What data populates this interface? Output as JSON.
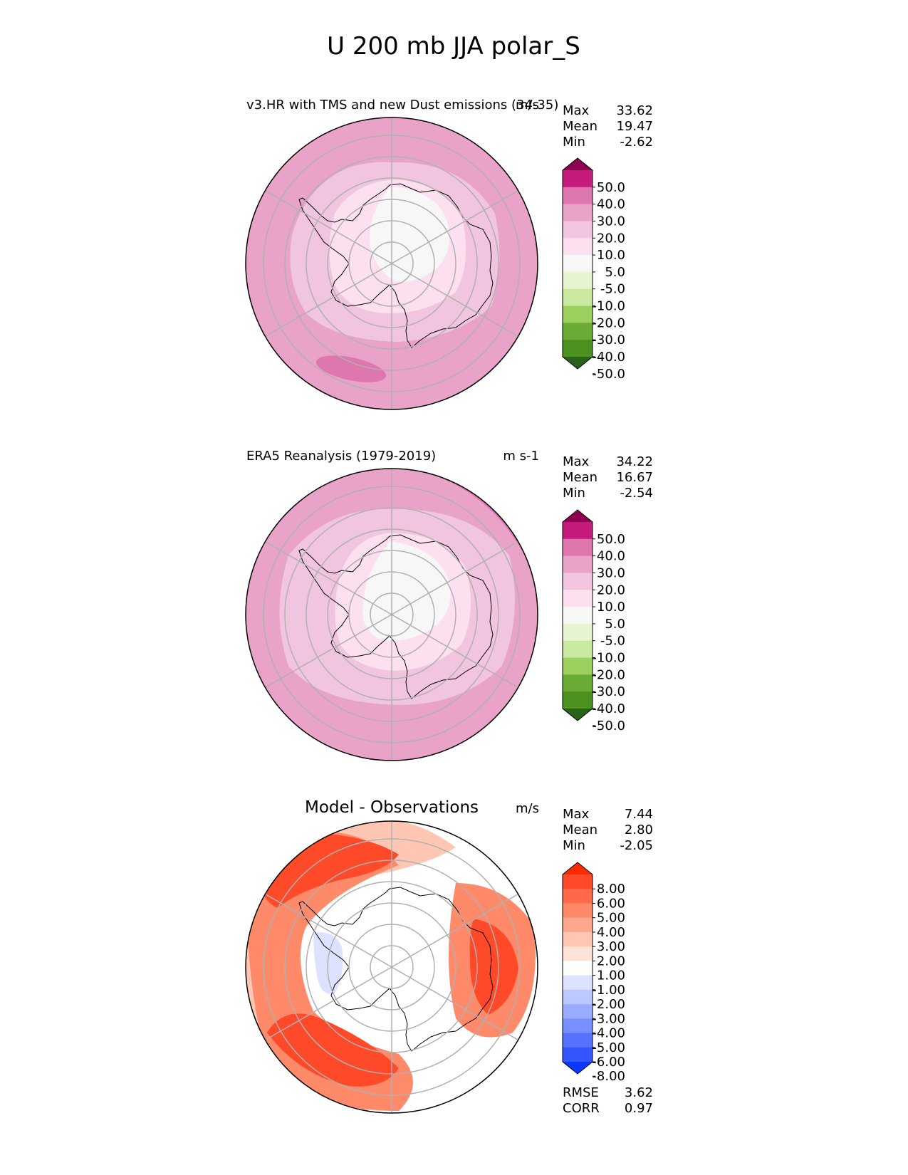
{
  "figure_title": "U 200 mb JJA polar_S",
  "stat_labels": {
    "max": "Max",
    "mean": "Mean",
    "min": "Min",
    "rmse": "RMSE",
    "corr": "CORR"
  },
  "colors": {
    "coastline": "#000000",
    "gridlines": "#b0b0b0"
  },
  "chart_data": [
    {
      "type": "heatmap",
      "projection": "south-polar-stereographic",
      "title": "v3.HR with TMS and new Dust emissions (34-35)",
      "units": "m/s",
      "stats": {
        "max": "33.62",
        "mean": "19.47",
        "min": "-2.62"
      },
      "colorbar": {
        "levels": [
          "50.0",
          "40.0",
          "30.0",
          "20.0",
          "10.0",
          "5.0",
          "-5.0",
          "-10.0",
          "-20.0",
          "-30.0",
          "-40.0",
          "-50.0"
        ],
        "colors": [
          "#8e0152",
          "#c51b7d",
          "#de77ae",
          "#e9a3c9",
          "#f1c5df",
          "#fde0ef",
          "#f7f7f7",
          "#e6f5d0",
          "#c9e8a0",
          "#9bcf5e",
          "#6aab35",
          "#4d9221",
          "#276419"
        ]
      },
      "field_regions": [
        {
          "value_range": "20 to 30",
          "region": "outer ring (outside 40S)"
        },
        {
          "value_range": "30 to 40",
          "region": "northern edge sectors and one jet core near 45S"
        },
        {
          "value_range": "10 to 20",
          "region": "ring near Antarctic coast"
        },
        {
          "value_range": "5 to 10",
          "region": "inner continent band"
        },
        {
          "value_range": "-5 to 5",
          "region": "polar cap over East Antarctica"
        }
      ]
    },
    {
      "type": "heatmap",
      "projection": "south-polar-stereographic",
      "title": "ERA5 Reanalysis (1979-2019)",
      "units": "m s-1",
      "stats": {
        "max": "34.22",
        "mean": "16.67",
        "min": "-2.54"
      },
      "colorbar": {
        "levels": [
          "50.0",
          "40.0",
          "30.0",
          "20.0",
          "10.0",
          "5.0",
          "-5.0",
          "-10.0",
          "-20.0",
          "-30.0",
          "-40.0",
          "-50.0"
        ],
        "colors": [
          "#8e0152",
          "#c51b7d",
          "#de77ae",
          "#e9a3c9",
          "#f1c5df",
          "#fde0ef",
          "#f7f7f7",
          "#e6f5d0",
          "#c9e8a0",
          "#9bcf5e",
          "#6aab35",
          "#4d9221",
          "#276419"
        ]
      },
      "field_regions": [
        {
          "value_range": "20 to 30",
          "region": "outer ring (outside 45S)"
        },
        {
          "value_range": "30 to 40",
          "region": "north-east edge sector"
        },
        {
          "value_range": "10 to 20",
          "region": "ring over Southern Ocean coast"
        },
        {
          "value_range": "5 to 10",
          "region": "continent margin"
        },
        {
          "value_range": "-5 to 5",
          "region": "polar cap"
        }
      ]
    },
    {
      "type": "heatmap",
      "projection": "south-polar-stereographic",
      "title": "Model - Observations",
      "units": "m/s",
      "stats": {
        "max": "7.44",
        "mean": "2.80",
        "min": "-2.05"
      },
      "metrics": {
        "rmse": "3.62",
        "corr": "0.97"
      },
      "colorbar": {
        "levels": [
          "8.00",
          "6.00",
          "5.00",
          "4.00",
          "3.00",
          "2.00",
          "1.00",
          "-1.00",
          "-2.00",
          "-3.00",
          "-4.00",
          "-5.00",
          "-6.00",
          "-8.00"
        ],
        "colors": [
          "#ff2a00",
          "#ff4a2a",
          "#ff6a4a",
          "#ff8a6a",
          "#ffa88e",
          "#ffc6b4",
          "#ffe2d8",
          "#ffffff",
          "#dde3ff",
          "#bcc8ff",
          "#9aacff",
          "#7890ff",
          "#5672ff",
          "#3455ff",
          "#0a37ff"
        ]
      },
      "field_regions": [
        {
          "value_range": "5 to 8",
          "region": "north-west sector near 40S"
        },
        {
          "value_range": "5 to 8",
          "region": "south-west sector near 50S"
        },
        {
          "value_range": "5 to 8",
          "region": "east sector near 60S"
        },
        {
          "value_range": "-1 to 1",
          "region": "polar cap and interior"
        },
        {
          "value_range": "-2 to -1",
          "region": "small patch west of Antarctic Peninsula"
        }
      ]
    }
  ]
}
